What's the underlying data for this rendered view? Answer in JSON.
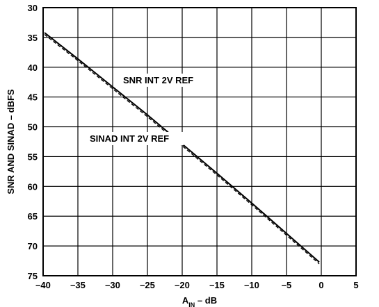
{
  "chart_data": {
    "type": "line",
    "xlabel_main": "A",
    "xlabel_sub": "IN",
    "xlabel_rest": " – dB",
    "ylabel": "SNR AND SINAD – dBFS",
    "xlim": [
      -40,
      5
    ],
    "ylim": [
      30,
      75
    ],
    "y_inverted": true,
    "grid": true,
    "x_ticks": [
      -40,
      -35,
      -30,
      -25,
      -20,
      -15,
      -10,
      -5,
      0,
      5
    ],
    "y_ticks": [
      30,
      35,
      40,
      45,
      50,
      55,
      60,
      65,
      70,
      75
    ],
    "x_tick_labels": [
      "–40",
      "–35",
      "–30",
      "–25",
      "–20",
      "–15",
      "–10",
      "–5",
      "0",
      "5"
    ],
    "y_tick_labels": [
      "30",
      "35",
      "40",
      "45",
      "50",
      "55",
      "60",
      "65",
      "70",
      "75"
    ],
    "series": [
      {
        "name": "SNR INT 2V REF",
        "style": "solid",
        "color": "#000000",
        "x": [
          -39.8,
          -35,
          -30,
          -25,
          -20,
          -15,
          -10,
          -5,
          -0.3
        ],
        "y": [
          34.2,
          38.6,
          43.3,
          48.0,
          52.9,
          57.8,
          62.8,
          67.9,
          72.7
        ]
      },
      {
        "name": "SINAD INT 2V REF",
        "style": "dashed",
        "color": "#000000",
        "x": [
          -39.8,
          -35,
          -30,
          -25,
          -20,
          -15,
          -10,
          -5,
          -0.3
        ],
        "y": [
          34.5,
          38.9,
          43.6,
          48.3,
          53.2,
          58.1,
          63.1,
          68.2,
          73.0
        ]
      }
    ],
    "annotations": [
      {
        "text": "SNR INT 2V REF",
        "x": -28.5,
        "y": 42.7
      },
      {
        "text": "SINAD INT 2V REF",
        "x": -33.3,
        "y": 52.5
      }
    ]
  }
}
